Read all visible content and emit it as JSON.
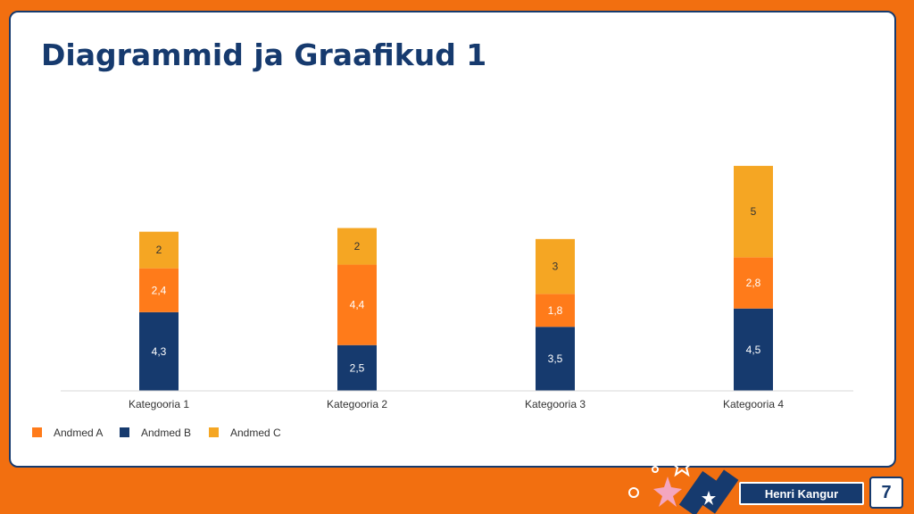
{
  "slide": {
    "title": "Diagrammid ja Graafikud 1",
    "author": "Henri Kangur",
    "page_number": "7"
  },
  "colors": {
    "background": "#f26f10",
    "navy": "#163a6e",
    "orange": "#ff7b1a",
    "gold": "#f5a623"
  },
  "chart_data": {
    "type": "bar",
    "stacked": true,
    "title": "",
    "xlabel": "",
    "ylabel": "",
    "categories": [
      "Kategooria 1",
      "Kategooria 2",
      "Kategooria 3",
      "Kategooria 4"
    ],
    "series": [
      {
        "name": "Andmed B",
        "color": "#163a6e",
        "values": [
          4.3,
          2.5,
          3.5,
          4.5
        ],
        "labels": [
          "4,3",
          "2,5",
          "3,5",
          "4,5"
        ]
      },
      {
        "name": "Andmed A",
        "color": "#ff7b1a",
        "values": [
          2.4,
          4.4,
          1.8,
          2.8
        ],
        "labels": [
          "2,4",
          "4,4",
          "1,8",
          "2,8"
        ]
      },
      {
        "name": "Andmed C",
        "color": "#f5a623",
        "values": [
          2,
          2,
          3,
          5
        ],
        "labels": [
          "2",
          "2",
          "3",
          "5"
        ]
      }
    ],
    "legend": {
      "placement": "bottom-left",
      "entries": [
        {
          "name": "Andmed A",
          "color": "#ff7b1a"
        },
        {
          "name": "Andmed B",
          "color": "#163a6e"
        },
        {
          "name": "Andmed C",
          "color": "#f5a623"
        }
      ]
    },
    "ylim": [
      0,
      12.5
    ],
    "grid": false
  }
}
